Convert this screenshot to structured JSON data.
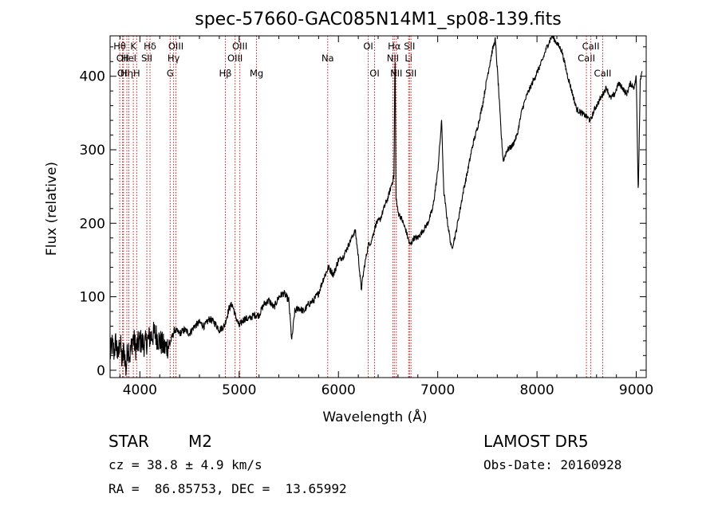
{
  "chart_data": {
    "type": "line",
    "title": "spec-57660-GAC085N14M1_sp08-139.fits",
    "xlabel": "Wavelength (Å)",
    "ylabel": "Flux (relative)",
    "xlim": [
      3700,
      9100
    ],
    "ylim": [
      -10,
      455
    ],
    "xticks": [
      4000,
      5000,
      6000,
      7000,
      8000,
      9000
    ],
    "yticks": [
      0,
      100,
      200,
      300,
      400
    ],
    "series": [
      {
        "points": [
          [
            3700,
            20
          ],
          [
            3720,
            35
          ],
          [
            3740,
            25
          ],
          [
            3760,
            40
          ],
          [
            3780,
            15
          ],
          [
            3800,
            45
          ],
          [
            3820,
            10
          ],
          [
            3840,
            30
          ],
          [
            3860,
            0
          ],
          [
            3880,
            35
          ],
          [
            3900,
            20
          ],
          [
            3930,
            45
          ],
          [
            3960,
            30
          ],
          [
            4000,
            40
          ],
          [
            4050,
            35
          ],
          [
            4100,
            45
          ],
          [
            4150,
            50
          ],
          [
            4200,
            40
          ],
          [
            4250,
            30
          ],
          [
            4300,
            35
          ],
          [
            4350,
            55
          ],
          [
            4400,
            50
          ],
          [
            4450,
            55
          ],
          [
            4500,
            50
          ],
          [
            4550,
            60
          ],
          [
            4600,
            65
          ],
          [
            4650,
            60
          ],
          [
            4700,
            70
          ],
          [
            4750,
            65
          ],
          [
            4800,
            55
          ],
          [
            4850,
            60
          ],
          [
            4870,
            70
          ],
          [
            4900,
            85
          ],
          [
            4930,
            90
          ],
          [
            4960,
            75
          ],
          [
            5000,
            60
          ],
          [
            5050,
            70
          ],
          [
            5100,
            70
          ],
          [
            5150,
            75
          ],
          [
            5200,
            75
          ],
          [
            5250,
            90
          ],
          [
            5300,
            95
          ],
          [
            5350,
            85
          ],
          [
            5400,
            100
          ],
          [
            5450,
            105
          ],
          [
            5500,
            95
          ],
          [
            5530,
            40
          ],
          [
            5560,
            80
          ],
          [
            5600,
            85
          ],
          [
            5650,
            80
          ],
          [
            5700,
            90
          ],
          [
            5750,
            95
          ],
          [
            5800,
            105
          ],
          [
            5850,
            125
          ],
          [
            5900,
            140
          ],
          [
            5950,
            130
          ],
          [
            6000,
            150
          ],
          [
            6050,
            155
          ],
          [
            6100,
            170
          ],
          [
            6150,
            185
          ],
          [
            6170,
            190
          ],
          [
            6200,
            155
          ],
          [
            6230,
            110
          ],
          [
            6260,
            140
          ],
          [
            6300,
            170
          ],
          [
            6330,
            175
          ],
          [
            6380,
            200
          ],
          [
            6420,
            205
          ],
          [
            6470,
            225
          ],
          [
            6500,
            235
          ],
          [
            6530,
            250
          ],
          [
            6560,
            265
          ],
          [
            6570,
            440
          ],
          [
            6580,
            235
          ],
          [
            6600,
            215
          ],
          [
            6640,
            205
          ],
          [
            6680,
            190
          ],
          [
            6720,
            170
          ],
          [
            6760,
            180
          ],
          [
            6800,
            180
          ],
          [
            6850,
            190
          ],
          [
            6900,
            200
          ],
          [
            6950,
            220
          ],
          [
            7000,
            270
          ],
          [
            7040,
            340
          ],
          [
            7060,
            245
          ],
          [
            7100,
            200
          ],
          [
            7140,
            165
          ],
          [
            7180,
            185
          ],
          [
            7220,
            215
          ],
          [
            7260,
            245
          ],
          [
            7300,
            270
          ],
          [
            7350,
            305
          ],
          [
            7400,
            330
          ],
          [
            7450,
            360
          ],
          [
            7500,
            400
          ],
          [
            7550,
            435
          ],
          [
            7580,
            450
          ],
          [
            7610,
            390
          ],
          [
            7640,
            320
          ],
          [
            7660,
            285
          ],
          [
            7700,
            300
          ],
          [
            7750,
            305
          ],
          [
            7800,
            320
          ],
          [
            7850,
            355
          ],
          [
            7900,
            375
          ],
          [
            7950,
            390
          ],
          [
            8000,
            405
          ],
          [
            8050,
            420
          ],
          [
            8100,
            440
          ],
          [
            8150,
            455
          ],
          [
            8200,
            445
          ],
          [
            8250,
            435
          ],
          [
            8300,
            405
          ],
          [
            8350,
            380
          ],
          [
            8400,
            355
          ],
          [
            8450,
            350
          ],
          [
            8500,
            345
          ],
          [
            8540,
            340
          ],
          [
            8580,
            355
          ],
          [
            8620,
            365
          ],
          [
            8660,
            375
          ],
          [
            8700,
            385
          ],
          [
            8740,
            370
          ],
          [
            8780,
            375
          ],
          [
            8820,
            390
          ],
          [
            8860,
            385
          ],
          [
            8900,
            375
          ],
          [
            8940,
            390
          ],
          [
            8980,
            385
          ],
          [
            9000,
            400
          ],
          [
            9020,
            240
          ],
          [
            9040,
            395
          ],
          [
            9060,
            410
          ]
        ]
      }
    ],
    "lines": [
      {
        "x": 3797,
        "labels": [
          [
            "Hθ",
            1
          ]
        ]
      },
      {
        "x": 3826,
        "labels": [
          [
            "OII",
            2
          ]
        ]
      },
      {
        "x": 3835,
        "labels": [
          [
            "OII",
            3
          ]
        ]
      },
      {
        "x": 3869,
        "labels": [
          [
            "Hη",
            3
          ]
        ]
      },
      {
        "x": 3889,
        "labels": [
          [
            "HeI",
            2
          ]
        ]
      },
      {
        "x": 3934,
        "labels": [
          [
            "K",
            1
          ]
        ]
      },
      {
        "x": 3968,
        "labels": [
          [
            "H",
            3
          ]
        ]
      },
      {
        "x": 4070,
        "labels": [
          [
            "SII",
            2
          ]
        ]
      },
      {
        "x": 4102,
        "labels": [
          [
            "Hδ",
            1
          ]
        ]
      },
      {
        "x": 4305,
        "labels": [
          [
            "G",
            3
          ]
        ]
      },
      {
        "x": 4340,
        "labels": [
          [
            "Hγ",
            2
          ]
        ]
      },
      {
        "x": 4363,
        "labels": [
          [
            "OIII",
            1
          ]
        ]
      },
      {
        "x": 4861,
        "labels": [
          [
            "Hβ",
            3
          ]
        ]
      },
      {
        "x": 4959,
        "labels": [
          [
            "OIII",
            2
          ]
        ]
      },
      {
        "x": 5007,
        "labels": [
          [
            "OIII",
            1
          ]
        ]
      },
      {
        "x": 5175,
        "labels": [
          [
            "Mg",
            3
          ]
        ]
      },
      {
        "x": 5892,
        "labels": [
          [
            "Na",
            2
          ]
        ]
      },
      {
        "x": 6300,
        "labels": [
          [
            "OI",
            1
          ]
        ]
      },
      {
        "x": 6364,
        "labels": [
          [
            "OI",
            3
          ]
        ]
      },
      {
        "x": 6548,
        "labels": [
          [
            "NII",
            2
          ]
        ]
      },
      {
        "x": 6563,
        "labels": [
          [
            "Hα",
            1
          ]
        ]
      },
      {
        "x": 6583,
        "labels": [
          [
            "NII",
            3
          ]
        ]
      },
      {
        "x": 6707,
        "labels": [
          [
            "Li",
            2
          ]
        ]
      },
      {
        "x": 6716,
        "labels": [
          [
            "SII",
            1
          ]
        ]
      },
      {
        "x": 6731,
        "labels": [
          [
            "SII",
            3
          ]
        ]
      },
      {
        "x": 8498,
        "labels": [
          [
            "CaII",
            2
          ]
        ]
      },
      {
        "x": 8542,
        "labels": [
          [
            "CaII",
            1
          ]
        ]
      },
      {
        "x": 8662,
        "labels": [
          [
            "CaII",
            3
          ]
        ]
      }
    ]
  },
  "footer": {
    "object_class": "STAR",
    "subclass": "M2",
    "survey": "LAMOST DR5",
    "cz": "cz = 38.8 ± 4.9 km/s",
    "obs_date": "Obs-Date: 20160928",
    "coords": "RA =  86.85753, DEC =  13.65992"
  }
}
